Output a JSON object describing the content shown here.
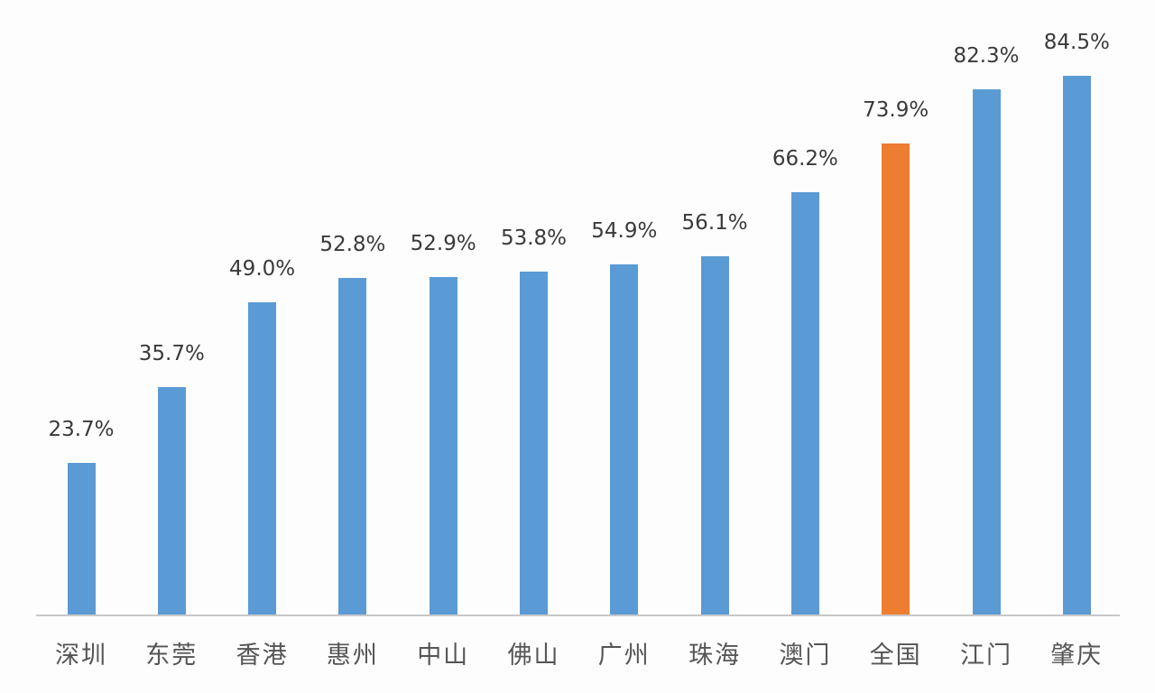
{
  "chart_data": {
    "type": "bar",
    "title": "",
    "xlabel": "",
    "ylabel": "",
    "ylim": [
      0,
      100
    ],
    "grid": false,
    "legend": null,
    "categories": [
      "深圳",
      "东莞",
      "香港",
      "惠州",
      "中山",
      "佛山",
      "广州",
      "珠海",
      "澳门",
      "全国",
      "江门",
      "肇庆"
    ],
    "values": [
      23.7,
      35.7,
      49.0,
      52.8,
      52.9,
      53.8,
      54.9,
      56.1,
      66.2,
      73.9,
      82.3,
      84.5
    ],
    "value_labels": [
      "23.7%",
      "35.7%",
      "49.0%",
      "52.8%",
      "52.9%",
      "53.8%",
      "54.9%",
      "56.1%",
      "66.2%",
      "73.9%",
      "82.3%",
      "84.5%"
    ],
    "unit": "%",
    "colors": {
      "default": "#5b9bd5",
      "highlight": "#ed7d31",
      "highlight_category": "全国"
    }
  }
}
